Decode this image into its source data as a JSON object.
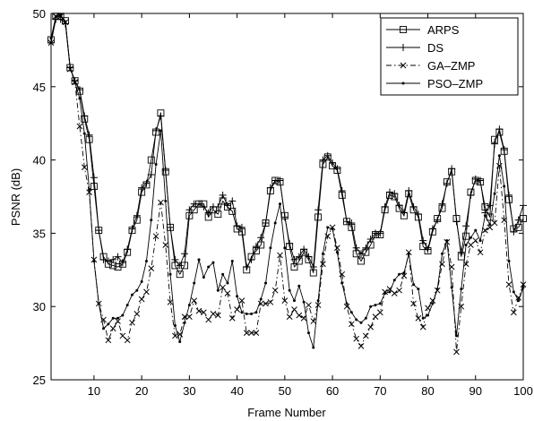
{
  "chart_data": {
    "type": "line",
    "title": "",
    "xlabel": "Frame Number",
    "ylabel": "PSNR (dB)",
    "xlim": [
      1,
      100
    ],
    "ylim": [
      25,
      50
    ],
    "xticks": [
      10,
      20,
      30,
      40,
      50,
      60,
      70,
      80,
      90,
      100
    ],
    "yticks": [
      25,
      30,
      35,
      40,
      45,
      50
    ],
    "grid": false,
    "legend_position": "top-right",
    "x": [
      1,
      2,
      3,
      4,
      5,
      6,
      7,
      8,
      9,
      10,
      11,
      12,
      13,
      14,
      15,
      16,
      17,
      18,
      19,
      20,
      21,
      22,
      23,
      24,
      25,
      26,
      27,
      28,
      29,
      30,
      31,
      32,
      33,
      34,
      35,
      36,
      37,
      38,
      39,
      40,
      41,
      42,
      43,
      44,
      45,
      46,
      47,
      48,
      49,
      50,
      51,
      52,
      53,
      54,
      55,
      56,
      57,
      58,
      59,
      60,
      61,
      62,
      63,
      64,
      65,
      66,
      67,
      68,
      69,
      70,
      71,
      72,
      73,
      74,
      75,
      76,
      77,
      78,
      79,
      80,
      81,
      82,
      83,
      84,
      85,
      86,
      87,
      88,
      89,
      90,
      91,
      92,
      93,
      94,
      95,
      96,
      97,
      98,
      99,
      100
    ],
    "series": [
      {
        "name": "ARPS",
        "marker": "square",
        "dash": "solid",
        "values": [
          48.2,
          49.8,
          49.8,
          49.5,
          46.3,
          45.4,
          44.7,
          42.8,
          41.4,
          38.2,
          35.2,
          33.4,
          32.9,
          32.8,
          32.7,
          32.9,
          33.7,
          35.2,
          35.9,
          37.8,
          38.3,
          40.0,
          41.9,
          43.2,
          39.2,
          35.4,
          32.8,
          32.2,
          32.8,
          36.2,
          36.6,
          37.0,
          37.0,
          36.1,
          36.6,
          36.3,
          37.2,
          36.8,
          36.5,
          35.3,
          35.1,
          32.5,
          33.4,
          33.8,
          34.2,
          35.7,
          37.9,
          38.6,
          38.5,
          36.2,
          34.1,
          32.7,
          33.1,
          33.7,
          33.2,
          32.3,
          36.1,
          39.7,
          40.2,
          39.6,
          39.3,
          37.6,
          35.8,
          35.4,
          33.6,
          33.1,
          33.7,
          34.2,
          34.9,
          34.9,
          36.6,
          37.6,
          37.5,
          36.7,
          36.2,
          37.7,
          36.6,
          36.1,
          34.1,
          33.8,
          35.1,
          36.0,
          36.7,
          38.5,
          39.2,
          36.0,
          33.4,
          34.8,
          37.8,
          38.6,
          38.5,
          36.8,
          36.1,
          41.4,
          41.9,
          40.6,
          37.3,
          35.3,
          35.4,
          36.0
        ]
      },
      {
        "name": "DS",
        "marker": "plus",
        "dash": "solid",
        "values": [
          48.0,
          49.6,
          49.6,
          49.3,
          46.3,
          45.4,
          44.8,
          43.0,
          41.7,
          38.8,
          35.2,
          33.2,
          33.1,
          33.2,
          33.4,
          33.0,
          33.9,
          35.3,
          36.2,
          38.1,
          38.4,
          39.0,
          42.0,
          43.0,
          39.3,
          35.4,
          33.2,
          32.8,
          33.6,
          36.6,
          37.0,
          37.0,
          36.8,
          36.4,
          36.8,
          36.8,
          37.6,
          36.9,
          37.2,
          35.5,
          35.4,
          32.7,
          33.2,
          34.1,
          34.7,
          35.7,
          38.1,
          38.6,
          38.6,
          36.1,
          34.3,
          33.2,
          33.4,
          33.9,
          33.4,
          32.7,
          36.6,
          40.0,
          40.3,
          39.8,
          39.4,
          37.9,
          35.8,
          35.7,
          34.0,
          33.6,
          34.0,
          34.6,
          35.0,
          35.0,
          36.8,
          37.8,
          37.7,
          36.9,
          36.4,
          37.9,
          36.8,
          36.3,
          34.5,
          33.9,
          35.3,
          35.9,
          37.0,
          38.4,
          39.4,
          35.8,
          33.7,
          35.5,
          37.6,
          38.7,
          38.6,
          36.4,
          36.9,
          41.1,
          42.1,
          40.7,
          37.6,
          35.1,
          35.9,
          36.9
        ]
      },
      {
        "name": "GA–ZMP",
        "marker": "x",
        "dash": "dashdot",
        "values": [
          48.0,
          49.8,
          49.8,
          49.4,
          46.2,
          45.3,
          42.3,
          39.5,
          37.8,
          33.2,
          30.2,
          29.1,
          27.7,
          28.5,
          29.0,
          28.0,
          27.7,
          28.9,
          29.5,
          30.5,
          31.0,
          32.6,
          34.8,
          37.1,
          34.2,
          30.3,
          28.0,
          28.1,
          29.3,
          29.3,
          30.4,
          29.7,
          29.6,
          29.1,
          29.5,
          29.4,
          31.3,
          30.9,
          29.2,
          29.8,
          30.4,
          28.2,
          28.2,
          28.2,
          30.2,
          30.2,
          30.3,
          31.1,
          33.5,
          30.4,
          29.3,
          29.8,
          29.4,
          29.2,
          30.1,
          29.0,
          30.1,
          32.9,
          34.8,
          35.4,
          34.0,
          32.2,
          30.0,
          28.8,
          27.8,
          27.3,
          28.0,
          28.6,
          29.3,
          29.6,
          31.0,
          31.2,
          30.9,
          31.1,
          32.1,
          33.7,
          30.2,
          29.2,
          28.6,
          29.9,
          30.4,
          31.1,
          32.9,
          34.4,
          32.7,
          26.9,
          30.0,
          32.9,
          34.2,
          34.5,
          33.7,
          35.2,
          35.4,
          35.7,
          39.6,
          35.9,
          31.5,
          29.6,
          30.6,
          31.5
        ]
      },
      {
        "name": "PSO–ZMP",
        "marker": "dot",
        "dash": "solid",
        "values": [
          48.3,
          49.8,
          49.9,
          49.4,
          46.3,
          45.3,
          44.2,
          41.8,
          38.0,
          33.1,
          30.2,
          28.5,
          28.8,
          29.2,
          29.2,
          29.4,
          30.1,
          30.8,
          31.1,
          31.7,
          33.1,
          35.9,
          39.7,
          42.0,
          37.2,
          32.2,
          28.7,
          27.6,
          28.9,
          30.1,
          31.6,
          33.2,
          32.0,
          32.7,
          33.0,
          31.1,
          32.2,
          31.6,
          33.1,
          30.7,
          29.6,
          29.5,
          29.5,
          29.6,
          30.5,
          31.6,
          34.0,
          35.7,
          37.0,
          34.0,
          31.1,
          30.4,
          31.4,
          30.3,
          28.2,
          27.2,
          30.4,
          33.6,
          35.4,
          35.3,
          33.7,
          31.6,
          30.2,
          29.6,
          29.1,
          28.9,
          29.2,
          30.0,
          30.1,
          30.2,
          30.9,
          31.0,
          31.8,
          32.2,
          32.3,
          33.6,
          31.5,
          31.2,
          29.2,
          29.4,
          30.2,
          31.2,
          33.6,
          34.5,
          31.3,
          28.0,
          31.2,
          34.2,
          34.7,
          35.2,
          34.5,
          36.2,
          35.6,
          37.7,
          40.3,
          38.2,
          33.1,
          31.0,
          30.4,
          31.3
        ]
      }
    ]
  }
}
